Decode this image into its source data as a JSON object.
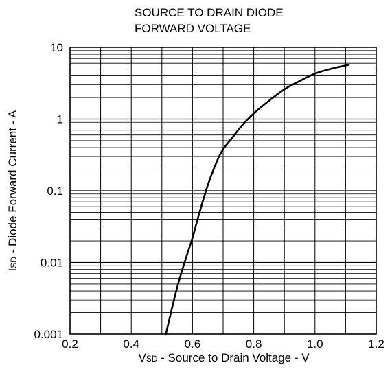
{
  "chart_data": {
    "type": "line",
    "title_lines": [
      "SOURCE TO DRAIN DIODE",
      "FORWARD VOLTAGE"
    ],
    "xlabel": {
      "main": "V",
      "sub": "SD",
      "rest": " - Source to Drain Voltage - V"
    },
    "ylabel": {
      "main": "I",
      "sub": "SD",
      "rest": " - Diode Forward Current - A"
    },
    "xlim": [
      0.2,
      1.2
    ],
    "ylim": [
      0.001,
      10
    ],
    "yscale": "log",
    "x_ticks": [
      0.2,
      0.4,
      0.6,
      0.8,
      1.0,
      1.2
    ],
    "x_tick_labels": [
      "0.2",
      "0.4",
      "0.6",
      "0.8",
      "1.0",
      "1.2"
    ],
    "y_ticks": [
      0.001,
      0.01,
      0.1,
      1,
      10
    ],
    "y_tick_labels": [
      "0.001",
      "0.01",
      "0.1",
      "1",
      "10"
    ],
    "grid": true,
    "series": [
      {
        "x": [
          0.513,
          0.55,
          0.58,
          0.6,
          0.62,
          0.65,
          0.68,
          0.7,
          0.73,
          0.76,
          0.8,
          0.85,
          0.9,
          0.95,
          1.0,
          1.05,
          1.11
        ],
        "y": [
          0.001,
          0.0045,
          0.012,
          0.022,
          0.045,
          0.12,
          0.26,
          0.38,
          0.55,
          0.8,
          1.2,
          1.8,
          2.6,
          3.4,
          4.3,
          5.0,
          5.7
        ]
      }
    ]
  }
}
